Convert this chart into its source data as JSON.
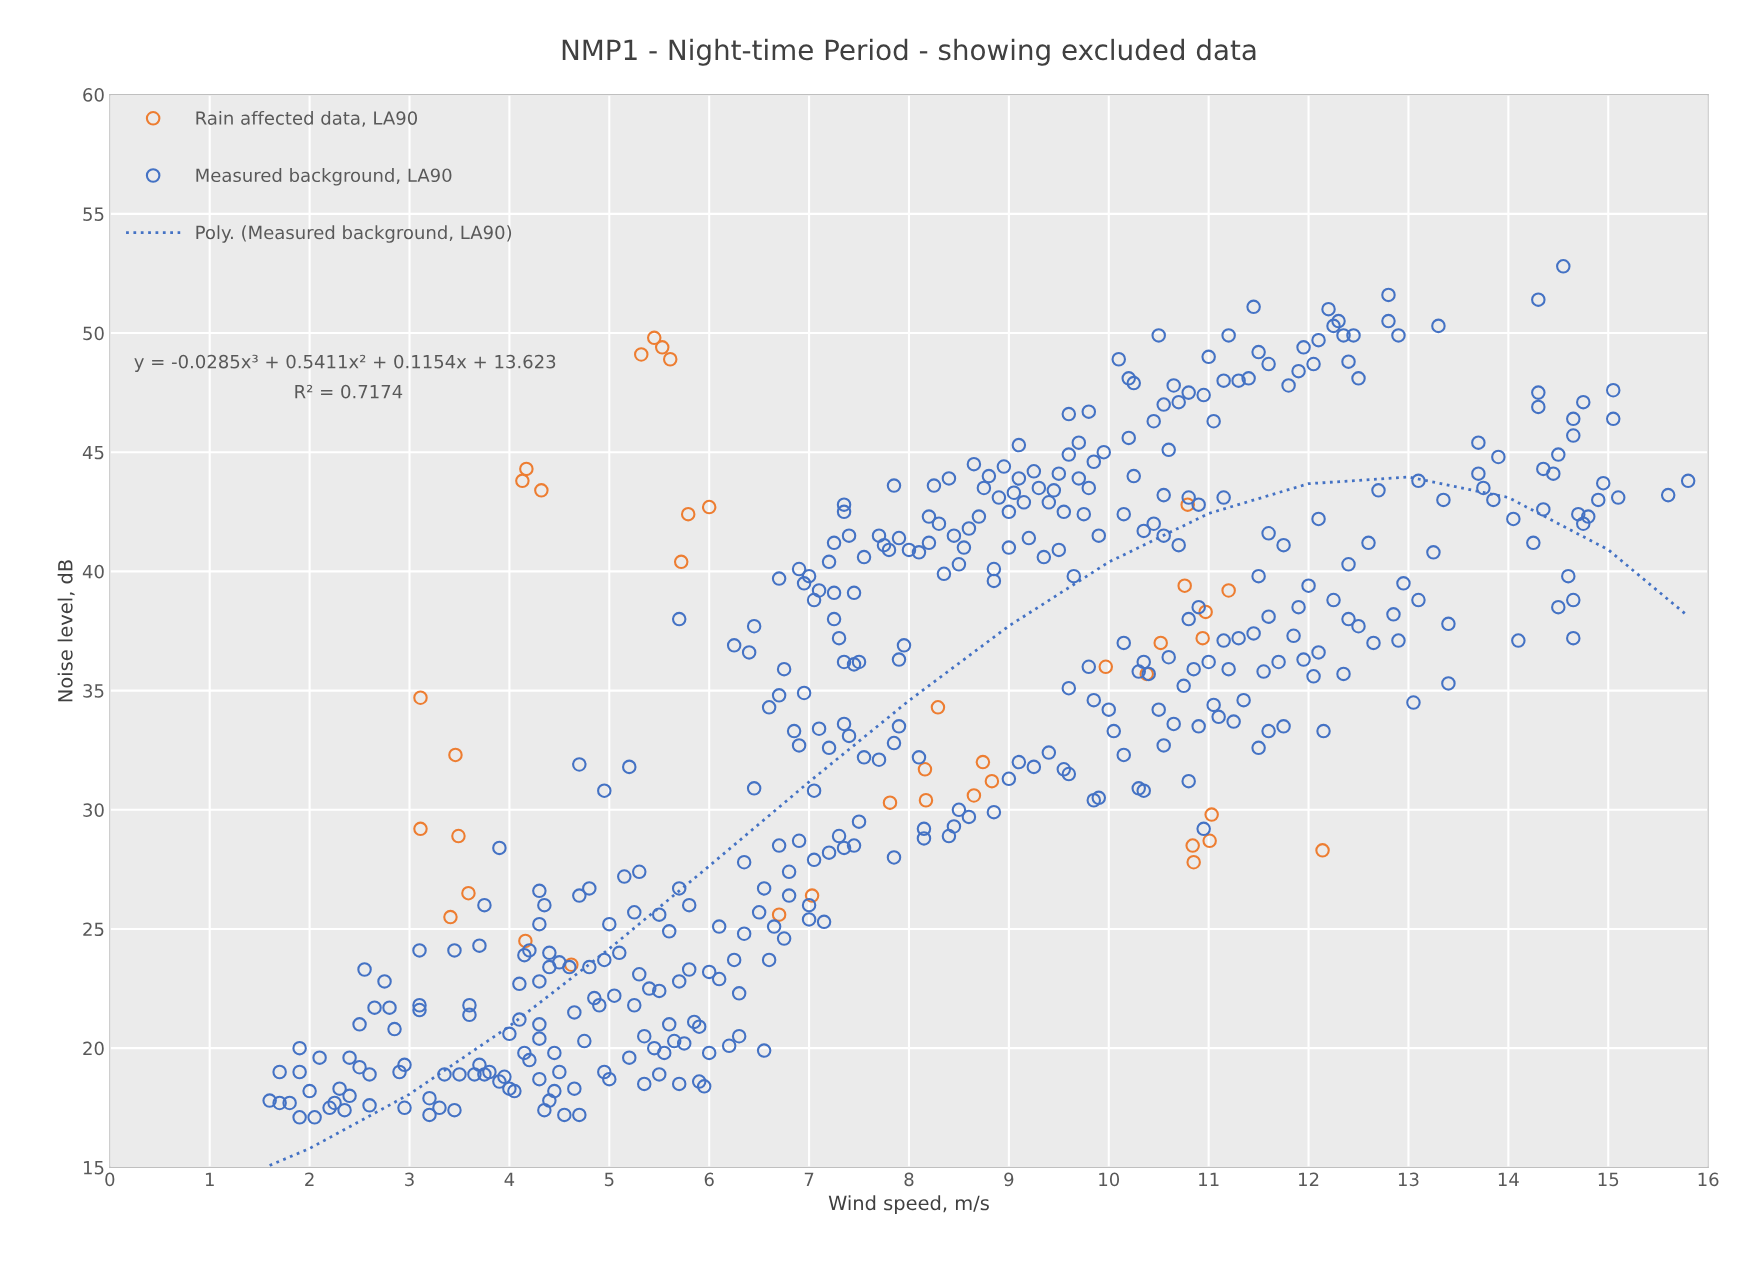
{
  "chart_data": {
    "type": "scatter",
    "title": "NMP1 - Night-time Period - showing excluded data",
    "xlabel": "Wind speed, m/s",
    "ylabel": "Noise level, dB",
    "xlim": [
      0,
      16
    ],
    "xticks": [
      0,
      1,
      2,
      3,
      4,
      5,
      6,
      7,
      8,
      9,
      10,
      11,
      12,
      13,
      14,
      15,
      16
    ],
    "ylim": [
      15,
      60
    ],
    "yticks": [
      15,
      20,
      25,
      30,
      35,
      40,
      45,
      50,
      55,
      60
    ],
    "grid": true,
    "legend": "top left",
    "marker": "circle",
    "annotations": [
      "y = -0.0285x³ + 0.5411x² + 0.1154x + 13.623",
      "R² = 0.7174"
    ],
    "series": [
      {
        "name": "Rain affected data, LA90",
        "color": "#ed7d31",
        "x": [
          5.45,
          5.32,
          5.53,
          5.61,
          4.17,
          4.13,
          4.32,
          5.79,
          6.0,
          5.72,
          3.11,
          3.46,
          3.11,
          3.49,
          3.59,
          3.41,
          4.16,
          4.62,
          6.7,
          7.03,
          8.29,
          8.16,
          7.81,
          8.17,
          8.74,
          8.83,
          8.65,
          10.52,
          9.97,
          10.38,
          10.76,
          10.79,
          11.2,
          10.94,
          10.97,
          11.03,
          10.84,
          10.85,
          11.01,
          12.14
        ],
        "values": [
          49.8,
          49.1,
          49.4,
          48.9,
          44.3,
          43.8,
          43.4,
          42.4,
          42.7,
          40.4,
          34.7,
          32.3,
          29.2,
          28.9,
          26.5,
          25.5,
          24.5,
          23.5,
          25.6,
          26.4,
          34.3,
          31.7,
          30.3,
          30.4,
          32.0,
          31.2,
          30.6,
          37.0,
          36.0,
          35.7,
          39.4,
          42.8,
          39.2,
          37.2,
          38.3,
          29.8,
          28.5,
          27.8,
          28.7,
          28.3
        ]
      },
      {
        "name": "Measured background, LA90",
        "color": "#4472c4",
        "x": [
          1.6,
          1.7,
          1.8,
          1.7,
          1.9,
          1.9,
          2.0,
          1.9,
          2.05,
          2.1,
          2.2,
          2.25,
          2.3,
          2.35,
          2.4,
          2.4,
          2.5,
          2.5,
          2.55,
          2.6,
          2.6,
          2.65,
          2.75,
          2.8,
          2.85,
          2.9,
          2.95,
          2.95,
          3.1,
          3.1,
          3.1,
          3.2,
          3.2,
          3.3,
          3.35,
          3.45,
          3.45,
          3.5,
          3.6,
          3.6,
          3.65,
          3.7,
          3.7,
          3.75,
          3.8,
          3.75,
          3.9,
          3.9,
          3.95,
          4.0,
          4.05,
          4.0,
          4.1,
          4.1,
          4.15,
          4.15,
          4.2,
          4.2,
          4.3,
          4.3,
          4.35,
          4.3,
          4.3,
          4.3,
          4.3,
          4.35,
          4.4,
          4.4,
          4.4,
          4.45,
          4.45,
          4.5,
          4.5,
          4.55,
          4.6,
          4.65,
          4.65,
          4.7,
          4.7,
          4.75,
          4.8,
          4.8,
          4.85,
          4.9,
          4.95,
          4.95,
          5.0,
          5.0,
          5.05,
          5.1,
          5.15,
          5.2,
          5.25,
          5.25,
          5.3,
          5.3,
          5.35,
          5.35,
          5.4,
          5.45,
          5.5,
          5.5,
          5.5,
          5.55,
          5.6,
          5.6,
          5.65,
          5.7,
          5.7,
          5.7,
          5.75,
          5.8,
          5.8,
          5.85,
          5.9,
          5.9,
          5.95,
          6.0,
          6.0,
          6.1,
          6.1,
          6.2,
          6.25,
          6.3,
          6.3,
          6.35,
          6.35,
          6.5,
          6.55,
          6.55,
          6.6,
          6.65,
          6.7,
          6.75,
          6.8,
          6.8,
          6.9,
          7.0,
          7.0,
          7.05,
          7.15,
          7.2,
          7.3,
          7.35,
          7.45,
          7.5,
          4.7,
          4.95,
          5.2,
          5.7,
          6.45,
          6.25,
          6.45,
          6.4,
          6.6,
          6.75,
          6.7,
          6.85,
          6.95,
          6.9,
          7.05,
          7.1,
          7.2,
          7.35,
          7.4,
          7.55,
          7.7,
          7.85,
          7.9,
          7.9,
          7.95,
          7.85,
          8.1,
          8.15,
          8.15,
          8.4,
          8.45,
          8.5,
          8.6,
          8.85,
          9.0,
          9.1,
          9.25,
          9.4,
          9.55,
          9.6,
          9.85,
          9.9,
          10.3,
          10.35,
          6.7,
          6.9,
          6.95,
          7.0,
          7.05,
          7.1,
          7.2,
          7.25,
          7.25,
          7.25,
          7.3,
          7.35,
          7.35,
          7.4,
          7.35,
          7.45,
          7.5,
          7.45,
          7.55,
          7.7,
          7.75,
          7.8,
          7.85,
          7.9,
          8.0,
          8.1,
          8.2,
          8.2,
          8.25,
          8.3,
          8.35,
          8.4,
          8.45,
          8.5,
          8.55,
          8.6,
          8.65,
          8.7,
          8.75,
          8.8,
          8.85,
          8.85,
          8.9,
          8.95,
          9.0,
          9.0,
          9.05,
          9.1,
          9.1,
          9.15,
          9.2,
          9.25,
          9.3,
          9.35,
          9.4,
          9.45,
          9.5,
          9.5,
          9.55,
          9.6,
          9.6,
          9.65,
          9.7,
          9.7,
          9.75,
          9.8,
          9.8,
          9.9,
          9.95,
          9.85,
          10.1,
          10.2,
          10.25,
          10.2,
          10.15,
          10.25,
          10.5,
          10.45,
          10.55,
          10.65,
          10.7,
          10.6,
          10.7,
          10.8,
          10.95,
          11.0,
          11.05,
          11.15,
          11.2,
          11.3,
          11.4,
          11.45,
          11.5,
          11.6,
          11.8,
          11.9,
          11.95,
          12.05,
          12.1,
          12.2,
          12.25,
          12.3,
          12.35,
          12.45,
          12.4,
          12.5,
          12.8,
          12.8,
          12.9,
          13.3,
          10.35,
          10.45,
          10.55,
          10.8,
          10.9,
          11.15,
          10.55,
          9.6,
          9.8,
          9.85,
          10.0,
          10.05,
          10.15,
          10.15,
          10.3,
          10.35,
          10.4,
          10.5,
          10.55,
          10.6,
          10.65,
          10.75,
          10.8,
          10.8,
          10.85,
          10.9,
          10.9,
          10.95,
          11.0,
          11.05,
          11.1,
          11.15,
          11.2,
          11.25,
          11.3,
          11.35,
          11.45,
          11.5,
          11.5,
          11.55,
          11.6,
          11.6,
          11.7,
          11.75,
          11.75,
          11.6,
          11.85,
          11.95,
          11.9,
          12.0,
          12.05,
          12.1,
          12.1,
          12.15,
          12.25,
          12.35,
          12.4,
          12.4,
          12.5,
          12.6,
          12.65,
          12.7,
          12.85,
          12.9,
          12.95,
          13.05,
          13.1,
          13.1,
          13.25,
          13.35,
          13.4,
          13.4,
          13.7,
          13.7,
          13.75,
          13.85,
          13.9,
          14.05,
          14.1,
          14.25,
          14.3,
          14.3,
          14.3,
          14.35,
          14.35,
          14.45,
          14.5,
          14.5,
          14.55,
          14.6,
          14.65,
          14.65,
          14.65,
          14.65,
          14.7,
          14.75,
          14.75,
          14.8,
          14.9,
          14.95,
          15.05,
          15.05,
          15.1,
          15.6,
          15.8
        ],
        "values": [
          17.8,
          17.7,
          17.7,
          19.0,
          20.0,
          19.0,
          18.2,
          17.1,
          17.1,
          19.6,
          17.5,
          17.7,
          18.3,
          17.4,
          18.0,
          19.6,
          19.2,
          21.0,
          23.3,
          18.9,
          17.6,
          21.7,
          22.8,
          21.7,
          20.8,
          19.0,
          19.3,
          17.5,
          24.1,
          21.8,
          21.6,
          17.9,
          17.2,
          17.5,
          18.9,
          17.4,
          24.1,
          18.9,
          21.8,
          21.4,
          18.9,
          19.3,
          24.3,
          18.9,
          19.0,
          26.0,
          28.4,
          18.6,
          18.8,
          18.3,
          18.2,
          20.6,
          21.2,
          22.7,
          23.9,
          19.8,
          19.5,
          24.1,
          25.2,
          26.6,
          26.0,
          22.8,
          21.0,
          20.4,
          18.7,
          17.4,
          17.8,
          24.0,
          23.4,
          19.8,
          18.2,
          23.6,
          19.0,
          17.2,
          23.4,
          21.5,
          18.3,
          17.2,
          26.4,
          20.3,
          26.7,
          23.4,
          22.1,
          21.8,
          23.7,
          19.0,
          25.2,
          18.7,
          22.2,
          24.0,
          27.2,
          19.6,
          21.8,
          25.7,
          27.4,
          23.1,
          18.5,
          20.5,
          22.5,
          20.0,
          25.6,
          22.4,
          18.9,
          19.8,
          24.9,
          21.0,
          20.3,
          26.7,
          22.8,
          18.5,
          20.2,
          26.0,
          23.3,
          21.1,
          18.6,
          20.9,
          18.4,
          23.2,
          19.8,
          25.1,
          22.9,
          20.1,
          23.7,
          20.5,
          22.3,
          24.8,
          27.8,
          25.7,
          26.7,
          19.9,
          23.7,
          25.1,
          28.5,
          24.6,
          26.4,
          27.4,
          28.7,
          26.0,
          25.4,
          27.9,
          25.3,
          28.2,
          28.9,
          28.4,
          28.5,
          29.5,
          31.9,
          30.8,
          31.8,
          38.0,
          30.9,
          36.9,
          37.7,
          36.6,
          34.3,
          35.9,
          34.8,
          33.3,
          34.9,
          32.7,
          30.8,
          33.4,
          32.6,
          33.6,
          33.1,
          32.2,
          32.1,
          32.8,
          33.5,
          36.3,
          36.9,
          28.0,
          32.2,
          29.2,
          28.8,
          28.9,
          29.3,
          30.0,
          29.7,
          29.9,
          31.3,
          32.0,
          31.8,
          32.4,
          31.7,
          31.5,
          30.4,
          30.5,
          30.9,
          30.8,
          39.7,
          40.1,
          39.5,
          39.8,
          38.8,
          39.2,
          40.4,
          39.1,
          41.2,
          38.0,
          37.2,
          42.8,
          42.5,
          41.5,
          36.2,
          36.1,
          36.2,
          39.1,
          40.6,
          41.5,
          41.1,
          40.9,
          43.6,
          41.4,
          40.9,
          40.8,
          41.2,
          42.3,
          43.6,
          42.0,
          39.9,
          43.9,
          41.5,
          40.3,
          41.0,
          41.8,
          44.5,
          42.3,
          43.5,
          44.0,
          40.1,
          39.6,
          43.1,
          44.4,
          42.5,
          41.0,
          43.3,
          43.9,
          45.3,
          42.9,
          41.4,
          44.2,
          43.5,
          40.6,
          42.9,
          43.4,
          44.1,
          40.9,
          42.5,
          44.9,
          46.6,
          39.8,
          45.4,
          43.9,
          42.4,
          46.7,
          43.5,
          41.5,
          45.0,
          44.6,
          48.9,
          48.1,
          47.9,
          45.6,
          42.4,
          44.0,
          49.9,
          46.3,
          47.0,
          47.8,
          47.1,
          45.1,
          41.1,
          47.5,
          47.4,
          49.0,
          46.3,
          48.0,
          49.9,
          48.0,
          48.1,
          51.1,
          49.2,
          48.7,
          47.8,
          48.4,
          49.4,
          48.7,
          49.7,
          51.0,
          50.3,
          50.5,
          49.9,
          49.9,
          48.8,
          48.1,
          51.6,
          50.5,
          49.9,
          50.3,
          41.7,
          42.0,
          41.5,
          43.1,
          42.8,
          43.1,
          43.2,
          35.1,
          36.0,
          34.6,
          34.2,
          33.3,
          37.0,
          32.3,
          35.8,
          36.2,
          35.7,
          34.2,
          32.7,
          36.4,
          33.6,
          35.2,
          38.0,
          31.2,
          35.9,
          38.5,
          33.5,
          29.2,
          36.2,
          34.4,
          33.9,
          37.1,
          35.9,
          33.7,
          37.2,
          34.6,
          37.4,
          32.6,
          39.8,
          35.8,
          38.1,
          33.3,
          36.2,
          41.1,
          33.5,
          41.6,
          37.3,
          36.3,
          38.5,
          39.4,
          35.6,
          42.2,
          36.6,
          33.3,
          38.8,
          35.7,
          38.0,
          40.3,
          37.7,
          41.2,
          37.0,
          43.4,
          38.2,
          37.1,
          39.5,
          34.5,
          43.8,
          38.8,
          40.8,
          43.0,
          37.8,
          35.3,
          45.4,
          44.1,
          43.5,
          43.0,
          44.8,
          42.2,
          37.1,
          41.2,
          51.4,
          47.5,
          46.9,
          44.3,
          42.6,
          44.1,
          44.9,
          38.5,
          52.8,
          39.8,
          46.4,
          45.7,
          38.8,
          37.2,
          42.4,
          47.1,
          42.0,
          42.3,
          43.0,
          43.7,
          46.4,
          47.6,
          43.1,
          43.2,
          43.8
        ]
      },
      {
        "name": "Poly. (Measured background, LA90)",
        "color": "#4472c4",
        "type": "line",
        "line_style": "dotted",
        "marker": "none",
        "x": [
          1.6,
          2,
          3,
          4,
          5,
          6,
          7,
          8,
          9,
          10,
          11,
          12,
          13,
          14,
          15,
          15.8
        ],
        "values": [
          15.08,
          15.79,
          18.07,
          20.92,
          24.17,
          27.64,
          31.17,
          34.58,
          37.71,
          40.39,
          42.43,
          43.68,
          43.96,
          43.1,
          40.91,
          38.12
        ]
      }
    ]
  }
}
